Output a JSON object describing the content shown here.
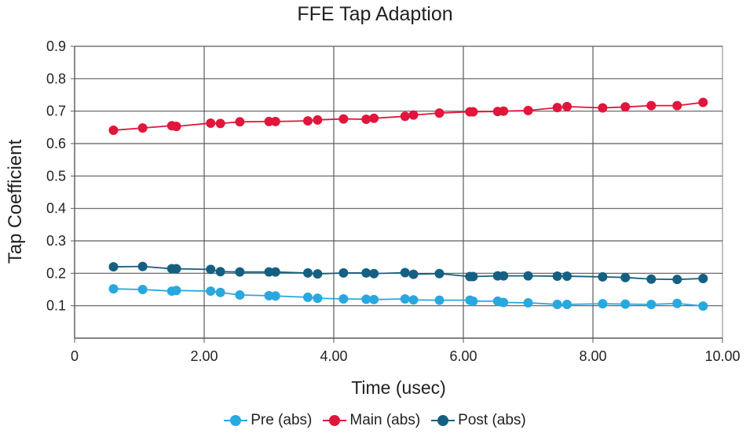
{
  "chart_data": {
    "type": "line",
    "title": "FFE Tap Adaption",
    "xlabel": "Time (usec)",
    "ylabel": "Tap Coefficient",
    "xlim": [
      0,
      10
    ],
    "ylim": [
      0,
      0.9
    ],
    "x_ticks": [
      0,
      2,
      4,
      6,
      8,
      10
    ],
    "x_tick_labels": [
      "0",
      "2.00",
      "4.00",
      "6.00",
      "8.00",
      "10.00"
    ],
    "y_ticks": [
      0.1,
      0.2,
      0.3,
      0.4,
      0.5,
      0.6,
      0.7,
      0.8,
      0.9
    ],
    "y_tick_labels": [
      "0.1",
      "0.2",
      "0.3",
      "0.4",
      "0.5",
      "0.6",
      "0.7",
      "0.8",
      "0.9"
    ],
    "x": [
      0.6,
      1.05,
      1.5,
      1.57,
      2.1,
      2.25,
      2.55,
      3.0,
      3.1,
      3.6,
      3.75,
      4.15,
      4.5,
      4.62,
      5.1,
      5.23,
      5.63,
      6.1,
      6.15,
      6.53,
      6.62,
      7.0,
      7.45,
      7.6,
      8.15,
      8.5,
      8.9,
      9.3,
      9.7
    ],
    "series": [
      {
        "name": "Pre (abs)",
        "color": "#29a8e0",
        "values": [
          0.152,
          0.15,
          0.145,
          0.147,
          0.145,
          0.141,
          0.133,
          0.131,
          0.13,
          0.126,
          0.123,
          0.121,
          0.12,
          0.119,
          0.121,
          0.118,
          0.117,
          0.117,
          0.114,
          0.114,
          0.11,
          0.109,
          0.104,
          0.104,
          0.106,
          0.105,
          0.104,
          0.107,
          0.099
        ]
      },
      {
        "name": "Main (abs)",
        "color": "#e0163c",
        "values": [
          0.641,
          0.648,
          0.655,
          0.653,
          0.663,
          0.662,
          0.667,
          0.668,
          0.668,
          0.67,
          0.673,
          0.676,
          0.675,
          0.678,
          0.684,
          0.688,
          0.694,
          0.698,
          0.698,
          0.699,
          0.7,
          0.702,
          0.711,
          0.714,
          0.71,
          0.713,
          0.717,
          0.717,
          0.727
        ]
      },
      {
        "name": "Post (abs)",
        "color": "#156082",
        "values": [
          0.22,
          0.221,
          0.214,
          0.214,
          0.212,
          0.205,
          0.204,
          0.204,
          0.204,
          0.201,
          0.198,
          0.201,
          0.201,
          0.199,
          0.202,
          0.197,
          0.199,
          0.19,
          0.19,
          0.192,
          0.192,
          0.192,
          0.191,
          0.191,
          0.189,
          0.187,
          0.182,
          0.181,
          0.184
        ]
      }
    ],
    "grid": true,
    "legend_position": "bottom-center"
  }
}
